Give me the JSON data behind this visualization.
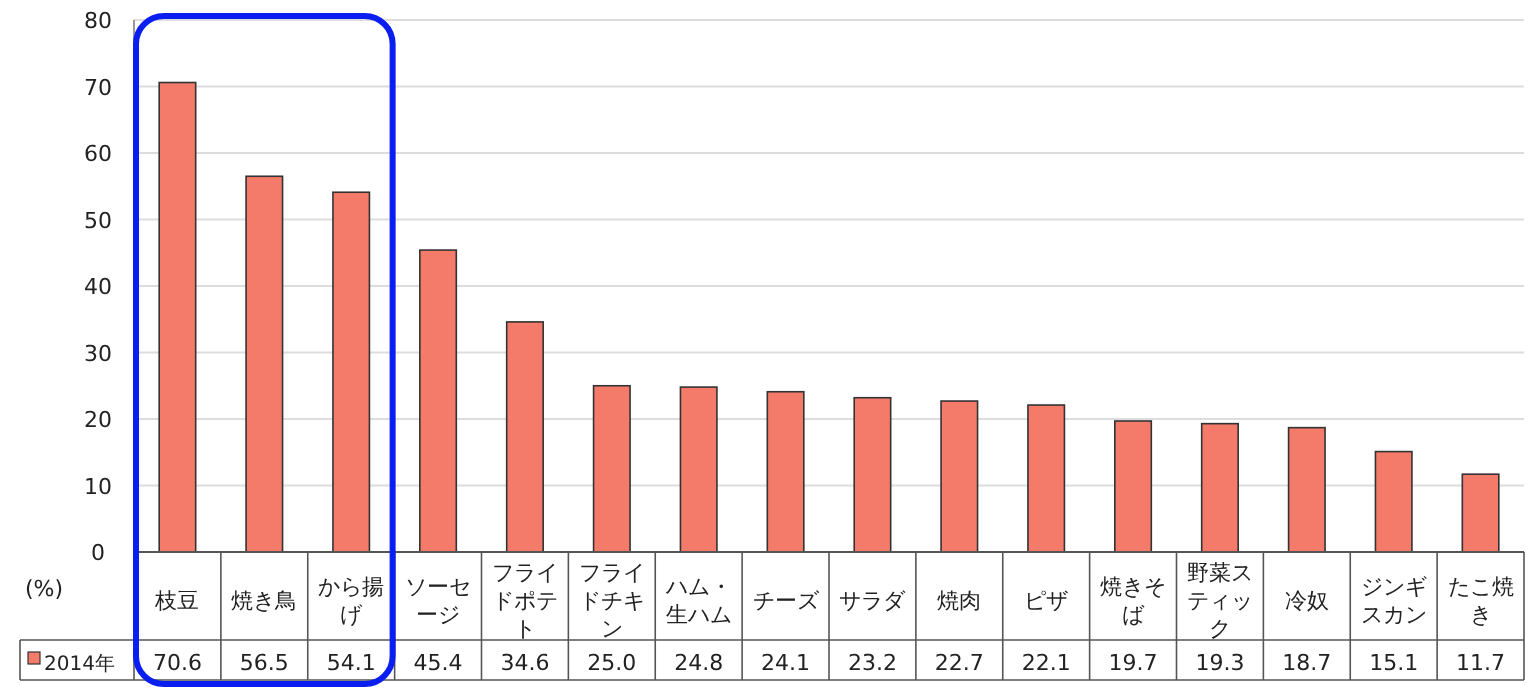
{
  "chart_data": {
    "type": "bar",
    "ylabel": "(%)",
    "categories": [
      "枝豆",
      "焼き鳥",
      "から揚げ",
      "ソーセージ",
      "フライドポテト",
      "フライドチキン",
      "ハム・生ハム",
      "チーズ",
      "サラダ",
      "焼肉",
      "ピザ",
      "焼きそば",
      "野菜スティック",
      "冷奴",
      "ジンギスカン",
      "たこ焼き"
    ],
    "series": [
      {
        "name": "2014年",
        "color": "#f47a6a",
        "values": [
          70.6,
          56.5,
          54.1,
          45.4,
          34.6,
          25.0,
          24.8,
          24.1,
          23.2,
          22.7,
          22.1,
          19.7,
          19.3,
          18.7,
          15.1,
          11.7
        ],
        "value_labels": [
          "70.6",
          "56.5",
          "54.1",
          "45.4",
          "34.6",
          "25.0",
          "24.8",
          "24.1",
          "23.2",
          "22.7",
          "22.1",
          "19.7",
          "19.3",
          "18.7",
          "15.1",
          "11.7"
        ]
      }
    ],
    "ylim": [
      0,
      80
    ],
    "yticks": [
      0,
      10,
      20,
      30,
      40,
      50,
      60,
      70,
      80
    ],
    "grid": "y",
    "legend": "bottom left"
  }
}
